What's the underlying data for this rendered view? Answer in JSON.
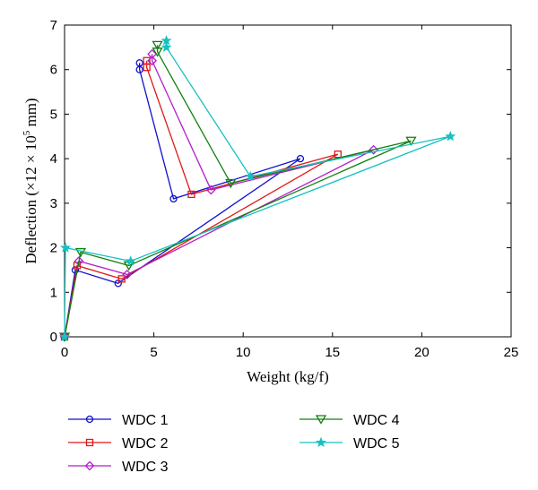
{
  "chart_data": {
    "type": "line",
    "title": "",
    "xlabel": "Weight (kg/f)",
    "ylabel_parts": {
      "prefix": "Deflection (×12 × 10",
      "exponent": "5",
      "suffix": " mm)"
    },
    "xlim": [
      0,
      25
    ],
    "ylim": [
      0,
      7
    ],
    "xticks": [
      "0",
      "5",
      "10",
      "15",
      "20",
      "25"
    ],
    "yticks": [
      "0",
      "1",
      "2",
      "3",
      "4",
      "5",
      "6",
      "7"
    ],
    "grid": false,
    "legend_position": "bottom",
    "series": [
      {
        "name": "WDC 1",
        "color": "#1010cc",
        "marker": "circle",
        "points": [
          [
            0,
            0
          ],
          [
            0.6,
            1.5
          ],
          [
            3.0,
            1.2
          ],
          [
            13.2,
            4.0
          ],
          [
            6.1,
            3.1
          ],
          [
            4.2,
            6.0
          ],
          [
            4.2,
            6.15
          ]
        ]
      },
      {
        "name": "WDC 2",
        "color": "#e01818",
        "marker": "square",
        "points": [
          [
            0,
            0
          ],
          [
            0.7,
            1.6
          ],
          [
            3.2,
            1.3
          ],
          [
            15.3,
            4.1
          ],
          [
            7.1,
            3.2
          ],
          [
            4.6,
            6.05
          ],
          [
            4.6,
            6.2
          ]
        ]
      },
      {
        "name": "WDC 3",
        "color": "#b020c8",
        "marker": "diamond",
        "points": [
          [
            0,
            0
          ],
          [
            0.8,
            1.7
          ],
          [
            3.5,
            1.4
          ],
          [
            17.3,
            4.2
          ],
          [
            8.2,
            3.3
          ],
          [
            4.9,
            6.2
          ],
          [
            4.9,
            6.35
          ]
        ]
      },
      {
        "name": "WDC 4",
        "color": "#108010",
        "marker": "triangle-down",
        "points": [
          [
            0,
            0
          ],
          [
            0.9,
            1.9
          ],
          [
            3.6,
            1.6
          ],
          [
            19.4,
            4.4
          ],
          [
            9.3,
            3.45
          ],
          [
            5.2,
            6.4
          ],
          [
            5.2,
            6.55
          ]
        ]
      },
      {
        "name": "WDC 5",
        "color": "#18c0c0",
        "marker": "star",
        "points": [
          [
            0,
            0
          ],
          [
            0.05,
            2.0
          ],
          [
            3.7,
            1.7
          ],
          [
            21.6,
            4.5
          ],
          [
            10.4,
            3.6
          ],
          [
            5.7,
            6.5
          ],
          [
            5.7,
            6.65
          ]
        ]
      }
    ]
  }
}
